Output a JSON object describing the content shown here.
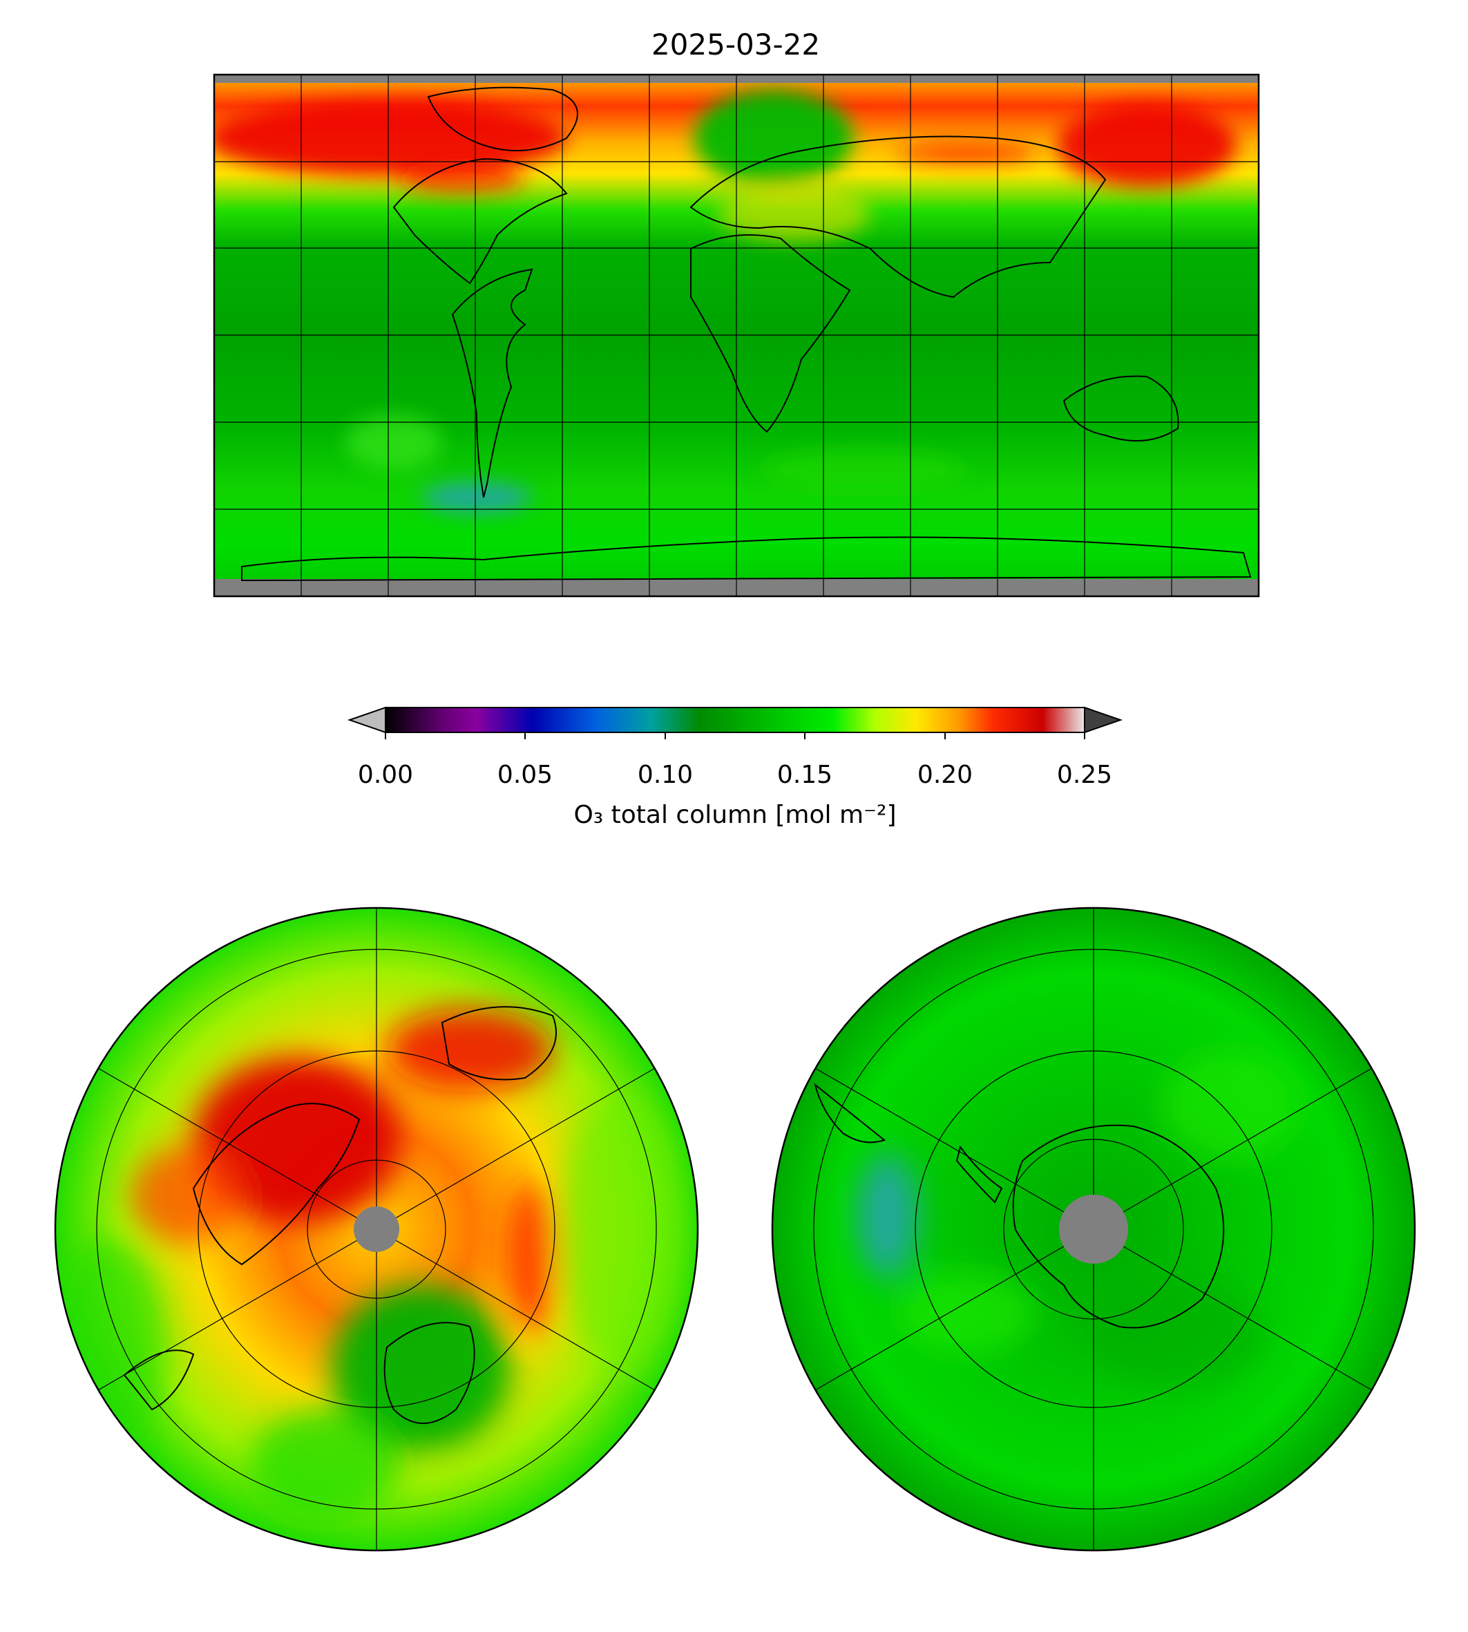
{
  "figure": {
    "title": "2025-03-22"
  },
  "colorbar": {
    "label": "O₃ total column [mol m⁻²]",
    "ticks": [
      "0.00",
      "0.05",
      "0.10",
      "0.15",
      "0.20",
      "0.25"
    ],
    "range": [
      0.0,
      0.25
    ],
    "extend": "both",
    "colors": {
      "under": "#bdbdbd",
      "over": "#404040",
      "missing": "#808080",
      "stops": [
        "#000000",
        "#7a0090",
        "#0000b0",
        "#0070e0",
        "#00a0a0",
        "#009000",
        "#00c000",
        "#00ee00",
        "#c8ff00",
        "#ffe000",
        "#ff9000",
        "#ff2000",
        "#d00000",
        "#e0e0e0"
      ]
    }
  },
  "panels": [
    {
      "id": "global",
      "projection": "equirectangular",
      "extent": "global"
    },
    {
      "id": "north-polar",
      "projection": "orthographic",
      "extent": "Northern Hemisphere"
    },
    {
      "id": "south-polar",
      "projection": "orthographic",
      "extent": "Southern Hemisphere"
    }
  ]
}
